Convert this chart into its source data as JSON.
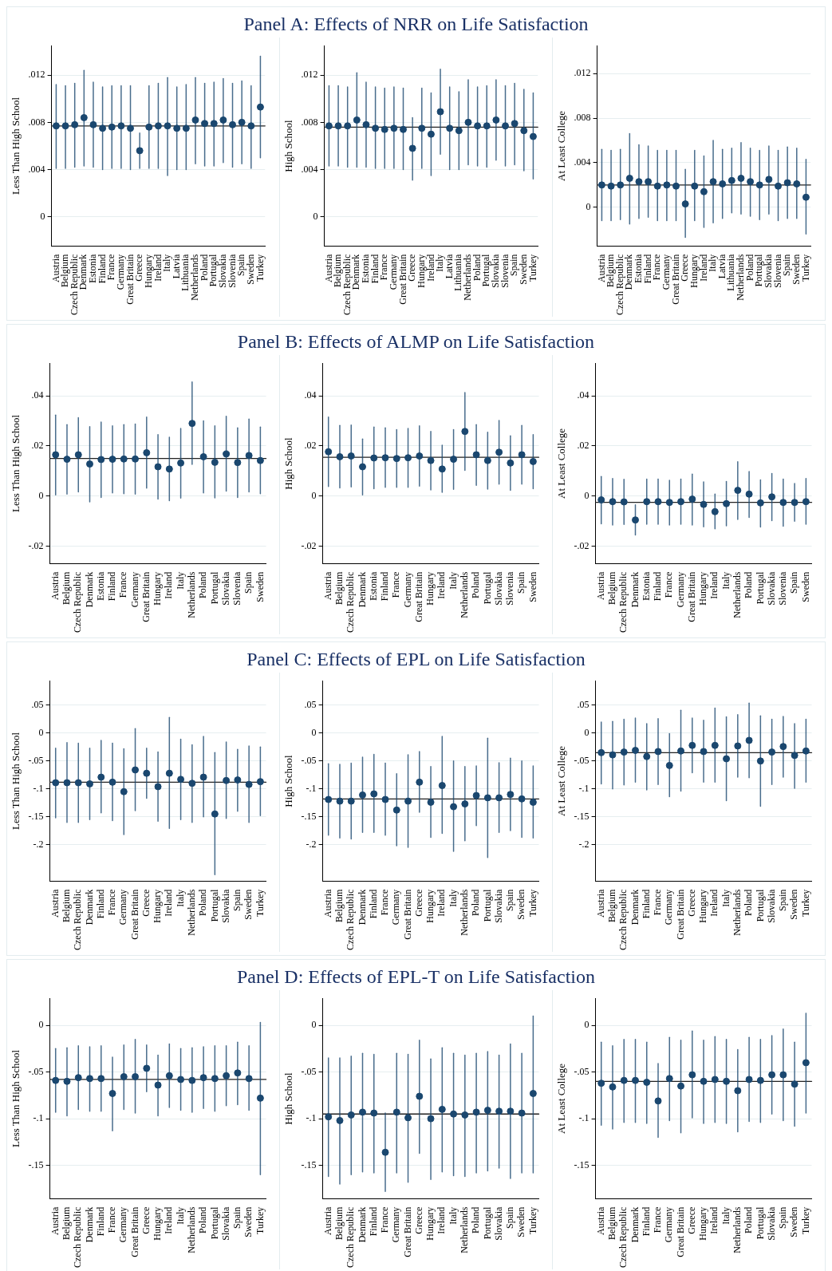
{
  "chart_data": [
    {
      "type": "scatter",
      "ylabel": "Less Than High School",
      "color": "#1a476f",
      "marker": "circle",
      "grid": "y",
      "legend": false,
      "categories": [
        "Austria",
        "Belgium",
        "Czech Republic",
        "Denmark",
        "Estonia",
        "Finland",
        "France",
        "Germany",
        "Great Britain",
        "Greece",
        "Hungary",
        "Ireland",
        "Italy",
        "Latvia",
        "Lithuania",
        "Netherlands",
        "Poland",
        "Portugal",
        "Slovakia",
        "Slovenia",
        "Spain",
        "Sweden",
        "Turkey"
      ],
      "values": [
        0.0077,
        0.0077,
        0.0078,
        0.0084,
        0.0078,
        0.0075,
        0.0076,
        0.0077,
        0.0075,
        0.0056,
        0.0076,
        0.0077,
        0.0077,
        0.0075,
        0.0075,
        0.0082,
        0.0079,
        0.0079,
        0.0082,
        0.0078,
        0.008,
        0.0077,
        0.0093
      ],
      "errors": [
        [
          0.0041,
          0.0112
        ],
        [
          0.0041,
          0.0111
        ],
        [
          0.0042,
          0.0113
        ],
        [
          0.0043,
          0.0124
        ],
        [
          0.0042,
          0.0114
        ],
        [
          0.004,
          0.011
        ],
        [
          0.0041,
          0.0111
        ],
        [
          0.0041,
          0.0111
        ],
        [
          0.004,
          0.0111
        ],
        [
          0.0041,
          0.0071
        ],
        [
          0.0041,
          0.0111
        ],
        [
          0.0041,
          0.0113
        ],
        [
          0.0035,
          0.0118
        ],
        [
          0.004,
          0.011
        ],
        [
          0.004,
          0.0112
        ],
        [
          0.0045,
          0.0118
        ],
        [
          0.0043,
          0.0113
        ],
        [
          0.0043,
          0.0114
        ],
        [
          0.0046,
          0.0117
        ],
        [
          0.0042,
          0.0113
        ],
        [
          0.0045,
          0.0115
        ],
        [
          0.0041,
          0.0111
        ],
        [
          0.005,
          0.0136
        ]
      ],
      "ref_lines": [
        {
          "axis": "y",
          "value": 0.0077,
          "color": "#222222"
        }
      ],
      "ylim": [
        -0.0025,
        0.0145
      ],
      "yticks": [
        {
          "value": 0,
          "label": "0"
        },
        {
          "value": 0.004,
          "label": ".004"
        },
        {
          "value": 0.008,
          "label": ".008"
        },
        {
          "value": 0.012,
          "label": ".012"
        }
      ]
    },
    {
      "type": "scatter",
      "ylabel": "High School",
      "color": "#1a476f",
      "marker": "circle",
      "grid": "y",
      "legend": false,
      "categories": [
        "Austria",
        "Belgium",
        "Czech Republic",
        "Denmark",
        "Estonia",
        "Finland",
        "France",
        "Germany",
        "Great Britain",
        "Greece",
        "Hungary",
        "Ireland",
        "Italy",
        "Latvia",
        "Lithuania",
        "Netherlands",
        "Poland",
        "Portugal",
        "Slovakia",
        "Slovenia",
        "Spain",
        "Sweden",
        "Turkey"
      ],
      "title": "Panel A: Effects of NRR on Life Satisfaction",
      "values": [
        0.0077,
        0.0077,
        0.0077,
        0.0082,
        0.0078,
        0.0075,
        0.0074,
        0.0075,
        0.0074,
        0.0058,
        0.0075,
        0.007,
        0.0089,
        0.0075,
        0.0073,
        0.008,
        0.0077,
        0.0077,
        0.0082,
        0.0077,
        0.0079,
        0.0073,
        0.0068
      ],
      "errors": [
        [
          0.0043,
          0.0111
        ],
        [
          0.0043,
          0.0111
        ],
        [
          0.0042,
          0.011
        ],
        [
          0.0042,
          0.0122
        ],
        [
          0.0042,
          0.0114
        ],
        [
          0.0041,
          0.011
        ],
        [
          0.0041,
          0.0109
        ],
        [
          0.0041,
          0.011
        ],
        [
          0.004,
          0.0109
        ],
        [
          0.0031,
          0.0084
        ],
        [
          0.0041,
          0.0109
        ],
        [
          0.0035,
          0.0105
        ],
        [
          0.0053,
          0.0125
        ],
        [
          0.004,
          0.011
        ],
        [
          0.004,
          0.0106
        ],
        [
          0.0044,
          0.0116
        ],
        [
          0.0043,
          0.011
        ],
        [
          0.0042,
          0.0111
        ],
        [
          0.0048,
          0.0116
        ],
        [
          0.0043,
          0.0111
        ],
        [
          0.0044,
          0.0113
        ],
        [
          0.0039,
          0.0108
        ],
        [
          0.0032,
          0.0105
        ]
      ],
      "ref_lines": [
        {
          "axis": "y",
          "value": 0.0076,
          "color": "#222222"
        }
      ],
      "ylim": [
        -0.0025,
        0.0145
      ],
      "yticks": [
        {
          "value": 0,
          "label": "0"
        },
        {
          "value": 0.004,
          "label": ".004"
        },
        {
          "value": 0.008,
          "label": ".008"
        },
        {
          "value": 0.012,
          "label": ".012"
        }
      ]
    },
    {
      "type": "scatter",
      "ylabel": "At Least College",
      "color": "#1a476f",
      "marker": "circle",
      "grid": "y",
      "legend": false,
      "categories": [
        "Austria",
        "Belgium",
        "Czech Republic",
        "Denmark",
        "Estonia",
        "Finland",
        "France",
        "Germany",
        "Great Britain",
        "Greece",
        "Hungary",
        "Ireland",
        "Italy",
        "Latvia",
        "Lithuania",
        "Netherlands",
        "Poland",
        "Portugal",
        "Slovakia",
        "Slovenia",
        "Spain",
        "Sweden",
        "Turkey"
      ],
      "values": [
        0.002,
        0.0019,
        0.002,
        0.0026,
        0.0023,
        0.0023,
        0.0019,
        0.002,
        0.0019,
        0.0003,
        0.0019,
        0.0014,
        0.0023,
        0.0021,
        0.0024,
        0.0026,
        0.0023,
        0.002,
        0.0025,
        0.0019,
        0.0022,
        0.0021,
        0.0009
      ],
      "errors": [
        [
          -0.0012,
          0.0052
        ],
        [
          -0.0012,
          0.0051
        ],
        [
          -0.0011,
          0.0052
        ],
        [
          -0.0015,
          0.0066
        ],
        [
          -0.001,
          0.0056
        ],
        [
          -0.0009,
          0.0055
        ],
        [
          -0.0012,
          0.0051
        ],
        [
          -0.0012,
          0.0051
        ],
        [
          -0.0012,
          0.0051
        ],
        [
          -0.0027,
          0.0034
        ],
        [
          -0.0012,
          0.0051
        ],
        [
          -0.0018,
          0.0046
        ],
        [
          -0.0014,
          0.006
        ],
        [
          -0.001,
          0.0052
        ],
        [
          -0.0005,
          0.0053
        ],
        [
          -0.0006,
          0.0058
        ],
        [
          -0.0008,
          0.0053
        ],
        [
          -0.0011,
          0.0051
        ],
        [
          -0.0006,
          0.0055
        ],
        [
          -0.0012,
          0.0051
        ],
        [
          -0.001,
          0.0054
        ],
        [
          -0.001,
          0.0053
        ],
        [
          -0.0024,
          0.0043
        ]
      ],
      "ref_lines": [
        {
          "axis": "y",
          "value": 0.002,
          "color": "#222222"
        }
      ],
      "ylim": [
        -0.0035,
        0.0145
      ],
      "yticks": [
        {
          "value": 0,
          "label": "0"
        },
        {
          "value": 0.004,
          "label": ".004"
        },
        {
          "value": 0.008,
          "label": ".008"
        },
        {
          "value": 0.012,
          "label": ".012"
        }
      ]
    },
    {
      "type": "scatter",
      "ylabel": "Less Than High School",
      "color": "#1a476f",
      "marker": "circle",
      "grid": "y",
      "legend": false,
      "categories": [
        "Austria",
        "Belgium",
        "Czech Republic",
        "Denmark",
        "Estonia",
        "Finland",
        "France",
        "Germany",
        "Great Britain",
        "Hungary",
        "Ireland",
        "Italy",
        "Netherlands",
        "Poland",
        "Portugal",
        "Slovakia",
        "Slovenia",
        "Spain",
        "Sweden"
      ],
      "values": [
        0.0165,
        0.0147,
        0.0165,
        0.0128,
        0.0146,
        0.0147,
        0.0148,
        0.0148,
        0.0173,
        0.0117,
        0.0108,
        0.0132,
        0.029,
        0.0157,
        0.0135,
        0.0168,
        0.0134,
        0.0162,
        0.0142
      ],
      "errors": [
        [
          0.0005,
          0.0323
        ],
        [
          0.0008,
          0.0285
        ],
        [
          0.0017,
          0.0313
        ],
        [
          -0.0023,
          0.0277
        ],
        [
          -0.0005,
          0.0295
        ],
        [
          0.0013,
          0.028
        ],
        [
          0.001,
          0.0285
        ],
        [
          0.0008,
          0.0287
        ],
        [
          0.0032,
          0.0315
        ],
        [
          -0.0012,
          0.0245
        ],
        [
          -0.0018,
          0.0235
        ],
        [
          -0.0008,
          0.027
        ],
        [
          0.0127,
          0.0455
        ],
        [
          0.0013,
          0.03
        ],
        [
          -0.0007,
          0.028
        ],
        [
          0.002,
          0.0318
        ],
        [
          -0.0005,
          0.0272
        ],
        [
          0.0017,
          0.0307
        ],
        [
          0.001,
          0.0275
        ]
      ],
      "ref_lines": [
        {
          "axis": "y",
          "value": 0.015,
          "color": "#222222"
        }
      ],
      "ylim": [
        -0.027,
        0.053
      ],
      "yticks": [
        {
          "value": -0.02,
          "label": "-.02"
        },
        {
          "value": 0,
          "label": "0"
        },
        {
          "value": 0.02,
          "label": ".02"
        },
        {
          "value": 0.04,
          "label": ".04"
        }
      ]
    },
    {
      "type": "scatter",
      "ylabel": "High School",
      "color": "#1a476f",
      "marker": "circle",
      "grid": "y",
      "legend": false,
      "categories": [
        "Austria",
        "Belgium",
        "Czech Republic",
        "Denmark",
        "Estonia",
        "Finland",
        "France",
        "Germany",
        "Great Britain",
        "Hungary",
        "Ireland",
        "Italy",
        "Netherlands",
        "Poland",
        "Portugal",
        "Slovakia",
        "Slovenia",
        "Spain",
        "Sweden"
      ],
      "title": "Panel B: Effects of ALMP on Life Satisfaction",
      "values": [
        0.0177,
        0.0157,
        0.016,
        0.0117,
        0.0152,
        0.0153,
        0.015,
        0.0153,
        0.016,
        0.0142,
        0.0108,
        0.0147,
        0.0258,
        0.0165,
        0.0142,
        0.0175,
        0.0132,
        0.0165,
        0.0138
      ],
      "errors": [
        [
          0.0038,
          0.0315
        ],
        [
          0.0033,
          0.0282
        ],
        [
          0.0037,
          0.0283
        ],
        [
          0.0005,
          0.0228
        ],
        [
          0.003,
          0.0275
        ],
        [
          0.0035,
          0.0272
        ],
        [
          0.0035,
          0.0265
        ],
        [
          0.0035,
          0.027
        ],
        [
          0.004,
          0.028
        ],
        [
          0.0025,
          0.0258
        ],
        [
          0.0015,
          0.0203
        ],
        [
          0.0027,
          0.0265
        ],
        [
          0.0103,
          0.0413
        ],
        [
          0.0043,
          0.0285
        ],
        [
          0.0028,
          0.0255
        ],
        [
          0.0048,
          0.0302
        ],
        [
          0.0023,
          0.024
        ],
        [
          0.0048,
          0.0282
        ],
        [
          0.003,
          0.0245
        ]
      ],
      "ref_lines": [
        {
          "axis": "y",
          "value": 0.0155,
          "color": "#222222"
        }
      ],
      "ylim": [
        -0.027,
        0.053
      ],
      "yticks": [
        {
          "value": -0.02,
          "label": "-.02"
        },
        {
          "value": 0,
          "label": "0"
        },
        {
          "value": 0.02,
          "label": ".02"
        },
        {
          "value": 0.04,
          "label": ".04"
        }
      ]
    },
    {
      "type": "scatter",
      "ylabel": "At Least College",
      "color": "#1a476f",
      "marker": "circle",
      "grid": "y",
      "legend": false,
      "categories": [
        "Austria",
        "Belgium",
        "Czech Republic",
        "Denmark",
        "Estonia",
        "Finland",
        "France",
        "Germany",
        "Great Britain",
        "Hungary",
        "Ireland",
        "Italy",
        "Netherlands",
        "Poland",
        "Portugal",
        "Slovakia",
        "Slovenia",
        "Spain",
        "Sweden"
      ],
      "values": [
        -0.0015,
        -0.0022,
        -0.0023,
        -0.0095,
        -0.0022,
        -0.0022,
        -0.0025,
        -0.0022,
        -0.0012,
        -0.0033,
        -0.0062,
        -0.003,
        0.0023,
        0.0008,
        -0.0027,
        -0.0003,
        -0.0025,
        -0.0025,
        -0.0022
      ],
      "errors": [
        [
          -0.011,
          0.0078
        ],
        [
          -0.0115,
          0.007
        ],
        [
          -0.0113,
          0.0067
        ],
        [
          -0.0155,
          -0.0035
        ],
        [
          -0.0112,
          0.0068
        ],
        [
          -0.0112,
          0.0068
        ],
        [
          -0.0115,
          0.0063
        ],
        [
          -0.0112,
          0.0068
        ],
        [
          -0.0115,
          0.0088
        ],
        [
          -0.0122,
          0.0057
        ],
        [
          -0.013,
          0.0008
        ],
        [
          -0.0118,
          0.0058
        ],
        [
          -0.0093,
          0.0137
        ],
        [
          -0.0085,
          0.0098
        ],
        [
          -0.0123,
          0.0065
        ],
        [
          -0.0098,
          0.009
        ],
        [
          -0.012,
          0.0068
        ],
        [
          -0.01,
          0.005
        ],
        [
          -0.0112,
          0.007
        ]
      ],
      "ref_lines": [
        {
          "axis": "y",
          "value": -0.0025,
          "color": "#222222"
        }
      ],
      "ylim": [
        -0.027,
        0.053
      ],
      "yticks": [
        {
          "value": -0.02,
          "label": "-.02"
        },
        {
          "value": 0,
          "label": "0"
        },
        {
          "value": 0.02,
          "label": ".02"
        },
        {
          "value": 0.04,
          "label": ".04"
        }
      ]
    },
    {
      "type": "scatter",
      "ylabel": "Less Than High School",
      "color": "#1a476f",
      "marker": "circle",
      "grid": "y",
      "legend": false,
      "categories": [
        "Austria",
        "Belgium",
        "Czech Republic",
        "Denmark",
        "Finland",
        "France",
        "Germany",
        "Great Britain",
        "Greece",
        "Hungary",
        "Ireland",
        "Italy",
        "Netherlands",
        "Poland",
        "Portugal",
        "Slovakia",
        "Spain",
        "Sweden",
        "Turkey"
      ],
      "values": [
        -0.089,
        -0.089,
        -0.089,
        -0.091,
        -0.079,
        -0.088,
        -0.105,
        -0.066,
        -0.072,
        -0.096,
        -0.072,
        -0.083,
        -0.09,
        -0.079,
        -0.145,
        -0.085,
        -0.084,
        -0.092,
        -0.087
      ],
      "errors": [
        [
          -0.152,
          -0.027
        ],
        [
          -0.16,
          -0.017
        ],
        [
          -0.16,
          -0.018
        ],
        [
          -0.155,
          -0.027
        ],
        [
          -0.143,
          -0.013
        ],
        [
          -0.157,
          -0.018
        ],
        [
          -0.182,
          -0.028
        ],
        [
          -0.139,
          0.008
        ],
        [
          -0.117,
          -0.027
        ],
        [
          -0.158,
          -0.034
        ],
        [
          -0.171,
          0.028
        ],
        [
          -0.155,
          -0.011
        ],
        [
          -0.16,
          -0.021
        ],
        [
          -0.15,
          -0.006
        ],
        [
          -0.254,
          -0.035
        ],
        [
          -0.153,
          -0.016
        ],
        [
          -0.14,
          -0.029
        ],
        [
          -0.16,
          -0.023
        ],
        [
          -0.148,
          -0.025
        ]
      ],
      "ref_lines": [
        {
          "axis": "y",
          "value": -0.088,
          "color": "#222222"
        }
      ],
      "ylim": [
        -0.266,
        0.094
      ],
      "yticks": [
        {
          "value": -0.2,
          "label": "-.2"
        },
        {
          "value": -0.15,
          "label": "-.15"
        },
        {
          "value": -0.1,
          "label": "-.1"
        },
        {
          "value": -0.05,
          "label": "-.05"
        },
        {
          "value": 0,
          "label": "0"
        },
        {
          "value": 0.05,
          "label": ".05"
        }
      ]
    },
    {
      "type": "scatter",
      "ylabel": "High School",
      "color": "#1a476f",
      "marker": "circle",
      "grid": "y",
      "legend": false,
      "categories": [
        "Austria",
        "Belgium",
        "Czech Republic",
        "Denmark",
        "Finland",
        "France",
        "Germany",
        "Great Britain",
        "Greece",
        "Hungary",
        "Ireland",
        "Italy",
        "Netherlands",
        "Poland",
        "Portugal",
        "Slovakia",
        "Spain",
        "Sweden",
        "Turkey"
      ],
      "title": "Panel C: Effects of EPL on Life Satisfaction",
      "values": [
        -0.119,
        -0.122,
        -0.122,
        -0.111,
        -0.109,
        -0.119,
        -0.138,
        -0.122,
        -0.088,
        -0.124,
        -0.094,
        -0.132,
        -0.127,
        -0.112,
        -0.116,
        -0.116,
        -0.11,
        -0.118,
        -0.124
      ],
      "errors": [
        [
          -0.183,
          -0.055
        ],
        [
          -0.188,
          -0.056
        ],
        [
          -0.19,
          -0.054
        ],
        [
          -0.178,
          -0.043
        ],
        [
          -0.178,
          -0.038
        ],
        [
          -0.183,
          -0.054
        ],
        [
          -0.202,
          -0.073
        ],
        [
          -0.205,
          -0.039
        ],
        [
          -0.142,
          -0.033
        ],
        [
          -0.187,
          -0.06
        ],
        [
          -0.18,
          -0.006
        ],
        [
          -0.212,
          -0.05
        ],
        [
          -0.193,
          -0.06
        ],
        [
          -0.166,
          -0.059
        ],
        [
          -0.223,
          -0.009
        ],
        [
          -0.178,
          -0.053
        ],
        [
          -0.175,
          -0.045
        ],
        [
          -0.187,
          -0.05
        ],
        [
          -0.188,
          -0.059
        ]
      ],
      "ref_lines": [
        {
          "axis": "y",
          "value": -0.118,
          "color": "#222222"
        }
      ],
      "ylim": [
        -0.266,
        0.094
      ],
      "yticks": [
        {
          "value": -0.2,
          "label": "-.2"
        },
        {
          "value": -0.15,
          "label": "-.15"
        },
        {
          "value": -0.1,
          "label": "-.1"
        },
        {
          "value": -0.05,
          "label": "-.05"
        },
        {
          "value": 0,
          "label": "0"
        },
        {
          "value": 0.05,
          "label": ".05"
        }
      ]
    },
    {
      "type": "scatter",
      "ylabel": "At Least College",
      "color": "#1a476f",
      "marker": "circle",
      "grid": "y",
      "legend": false,
      "categories": [
        "Austria",
        "Belgium",
        "Czech Republic",
        "Denmark",
        "Finland",
        "France",
        "Germany",
        "Great Britain",
        "Greece",
        "Hungary",
        "Ireland",
        "Italy",
        "Netherlands",
        "Poland",
        "Portugal",
        "Slovakia",
        "Spain",
        "Sweden",
        "Turkey"
      ],
      "values": [
        -0.035,
        -0.039,
        -0.034,
        -0.031,
        -0.042,
        -0.033,
        -0.058,
        -0.032,
        -0.022,
        -0.033,
        -0.022,
        -0.046,
        -0.023,
        -0.013,
        -0.05,
        -0.034,
        -0.024,
        -0.04,
        -0.032
      ],
      "errors": [
        [
          -0.091,
          0.02
        ],
        [
          -0.1,
          0.021
        ],
        [
          -0.093,
          0.025
        ],
        [
          -0.088,
          0.027
        ],
        [
          -0.102,
          0.017
        ],
        [
          -0.092,
          0.026
        ],
        [
          -0.114,
          -0.001
        ],
        [
          -0.104,
          0.041
        ],
        [
          -0.071,
          0.027
        ],
        [
          -0.088,
          0.023
        ],
        [
          -0.088,
          0.045
        ],
        [
          -0.121,
          0.029
        ],
        [
          -0.079,
          0.033
        ],
        [
          -0.08,
          0.054
        ],
        [
          -0.131,
          0.031
        ],
        [
          -0.092,
          0.025
        ],
        [
          -0.079,
          0.03
        ],
        [
          -0.099,
          0.017
        ],
        [
          -0.088,
          0.025
        ]
      ],
      "ref_lines": [
        {
          "axis": "y",
          "value": -0.035,
          "color": "#222222"
        }
      ],
      "ylim": [
        -0.266,
        0.094
      ],
      "yticks": [
        {
          "value": -0.2,
          "label": "-.2"
        },
        {
          "value": -0.15,
          "label": "-.15"
        },
        {
          "value": -0.1,
          "label": "-.1"
        },
        {
          "value": -0.05,
          "label": "-.05"
        },
        {
          "value": 0,
          "label": "0"
        },
        {
          "value": 0.05,
          "label": ".05"
        }
      ]
    },
    {
      "type": "scatter",
      "ylabel": "Less Than High School",
      "color": "#1a476f",
      "marker": "circle",
      "grid": "y",
      "legend": false,
      "categories": [
        "Austria",
        "Belgium",
        "Czech Republic",
        "Denmark",
        "Finland",
        "France",
        "Germany",
        "Great Britain",
        "Greece",
        "Hungary",
        "Ireland",
        "Italy",
        "Netherlands",
        "Poland",
        "Portugal",
        "Slovakia",
        "Spain",
        "Sweden",
        "Turkey"
      ],
      "values": [
        -0.059,
        -0.06,
        -0.056,
        -0.057,
        -0.057,
        -0.073,
        -0.055,
        -0.055,
        -0.046,
        -0.064,
        -0.054,
        -0.058,
        -0.059,
        -0.056,
        -0.057,
        -0.054,
        -0.051,
        -0.057,
        -0.078
      ],
      "errors": [
        [
          -0.093,
          -0.025
        ],
        [
          -0.097,
          -0.024
        ],
        [
          -0.09,
          -0.022
        ],
        [
          -0.092,
          -0.023
        ],
        [
          -0.092,
          -0.022
        ],
        [
          -0.113,
          -0.034
        ],
        [
          -0.09,
          -0.021
        ],
        [
          -0.094,
          -0.015
        ],
        [
          -0.071,
          -0.021
        ],
        [
          -0.097,
          -0.032
        ],
        [
          -0.088,
          -0.02
        ],
        [
          -0.091,
          -0.025
        ],
        [
          -0.093,
          -0.024
        ],
        [
          -0.089,
          -0.023
        ],
        [
          -0.092,
          -0.022
        ],
        [
          -0.086,
          -0.022
        ],
        [
          -0.085,
          -0.018
        ],
        [
          -0.091,
          -0.022
        ],
        [
          -0.16,
          0.003
        ]
      ],
      "ref_lines": [
        {
          "axis": "y",
          "value": -0.058,
          "color": "#222222"
        }
      ],
      "ylim": [
        -0.186,
        0.029
      ],
      "yticks": [
        {
          "value": -0.15,
          "label": "-.15"
        },
        {
          "value": -0.1,
          "label": "-.1"
        },
        {
          "value": -0.05,
          "label": "-.05"
        },
        {
          "value": 0,
          "label": "0"
        }
      ]
    },
    {
      "type": "scatter",
      "ylabel": "High School",
      "color": "#1a476f",
      "marker": "circle",
      "grid": "y",
      "legend": false,
      "categories": [
        "Austria",
        "Belgium",
        "Czech Republic",
        "Denmark",
        "Finland",
        "France",
        "Germany",
        "Great Britain",
        "Greece",
        "Hungary",
        "Ireland",
        "Italy",
        "Netherlands",
        "Poland",
        "Portugal",
        "Slovakia",
        "Spain",
        "Sweden",
        "Turkey"
      ],
      "title": "Panel D: Effects of EPL-T on Life Satisfaction",
      "values": [
        -0.098,
        -0.102,
        -0.096,
        -0.093,
        -0.094,
        -0.136,
        -0.093,
        -0.099,
        -0.076,
        -0.1,
        -0.09,
        -0.095,
        -0.096,
        -0.093,
        -0.091,
        -0.092,
        -0.092,
        -0.094,
        -0.073
      ],
      "errors": [
        [
          -0.162,
          -0.035
        ],
        [
          -0.17,
          -0.035
        ],
        [
          -0.16,
          -0.033
        ],
        [
          -0.157,
          -0.03
        ],
        [
          -0.158,
          -0.031
        ],
        [
          -0.178,
          -0.094
        ],
        [
          -0.158,
          -0.03
        ],
        [
          -0.168,
          -0.031
        ],
        [
          -0.137,
          -0.016
        ],
        [
          -0.165,
          -0.036
        ],
        [
          -0.157,
          -0.024
        ],
        [
          -0.161,
          -0.03
        ],
        [
          -0.162,
          -0.032
        ],
        [
          -0.158,
          -0.03
        ],
        [
          -0.156,
          -0.028
        ],
        [
          -0.153,
          -0.032
        ],
        [
          -0.164,
          -0.02
        ],
        [
          -0.158,
          -0.03
        ],
        [
          -0.158,
          0.01
        ]
      ],
      "ref_lines": [
        {
          "axis": "y",
          "value": -0.095,
          "color": "#222222"
        }
      ],
      "ylim": [
        -0.186,
        0.029
      ],
      "yticks": [
        {
          "value": -0.15,
          "label": "-.15"
        },
        {
          "value": -0.1,
          "label": "-.1"
        },
        {
          "value": -0.05,
          "label": "-.05"
        },
        {
          "value": 0,
          "label": "0"
        }
      ]
    },
    {
      "type": "scatter",
      "ylabel": "At Least College",
      "color": "#1a476f",
      "marker": "circle",
      "grid": "y",
      "legend": false,
      "categories": [
        "Austria",
        "Belgium",
        "Czech Republic",
        "Denmark",
        "Finland",
        "France",
        "Germany",
        "Great Britain",
        "Greece",
        "Hungary",
        "Ireland",
        "Italy",
        "Netherlands",
        "Poland",
        "Portugal",
        "Slovakia",
        "Spain",
        "Sweden",
        "Turkey"
      ],
      "values": [
        -0.062,
        -0.066,
        -0.059,
        -0.059,
        -0.061,
        -0.081,
        -0.057,
        -0.065,
        -0.053,
        -0.06,
        -0.058,
        -0.06,
        -0.07,
        -0.058,
        -0.059,
        -0.053,
        -0.053,
        -0.063,
        -0.04
      ],
      "errors": [
        [
          -0.107,
          -0.018
        ],
        [
          -0.111,
          -0.022
        ],
        [
          -0.104,
          -0.015
        ],
        [
          -0.104,
          -0.015
        ],
        [
          -0.105,
          -0.018
        ],
        [
          -0.12,
          -0.041
        ],
        [
          -0.102,
          -0.013
        ],
        [
          -0.115,
          -0.016
        ],
        [
          -0.099,
          -0.006
        ],
        [
          -0.105,
          -0.016
        ],
        [
          -0.104,
          -0.012
        ],
        [
          -0.105,
          -0.015
        ],
        [
          -0.114,
          -0.026
        ],
        [
          -0.103,
          -0.013
        ],
        [
          -0.104,
          -0.015
        ],
        [
          -0.095,
          -0.011
        ],
        [
          -0.102,
          -0.004
        ],
        [
          -0.108,
          -0.018
        ],
        [
          -0.094,
          0.013
        ]
      ],
      "ref_lines": [
        {
          "axis": "y",
          "value": -0.06,
          "color": "#222222"
        }
      ],
      "ylim": [
        -0.186,
        0.029
      ],
      "yticks": [
        {
          "value": -0.15,
          "label": "-.15"
        },
        {
          "value": -0.1,
          "label": "-.1"
        },
        {
          "value": -0.05,
          "label": "-.05"
        },
        {
          "value": 0,
          "label": "0"
        }
      ]
    }
  ]
}
